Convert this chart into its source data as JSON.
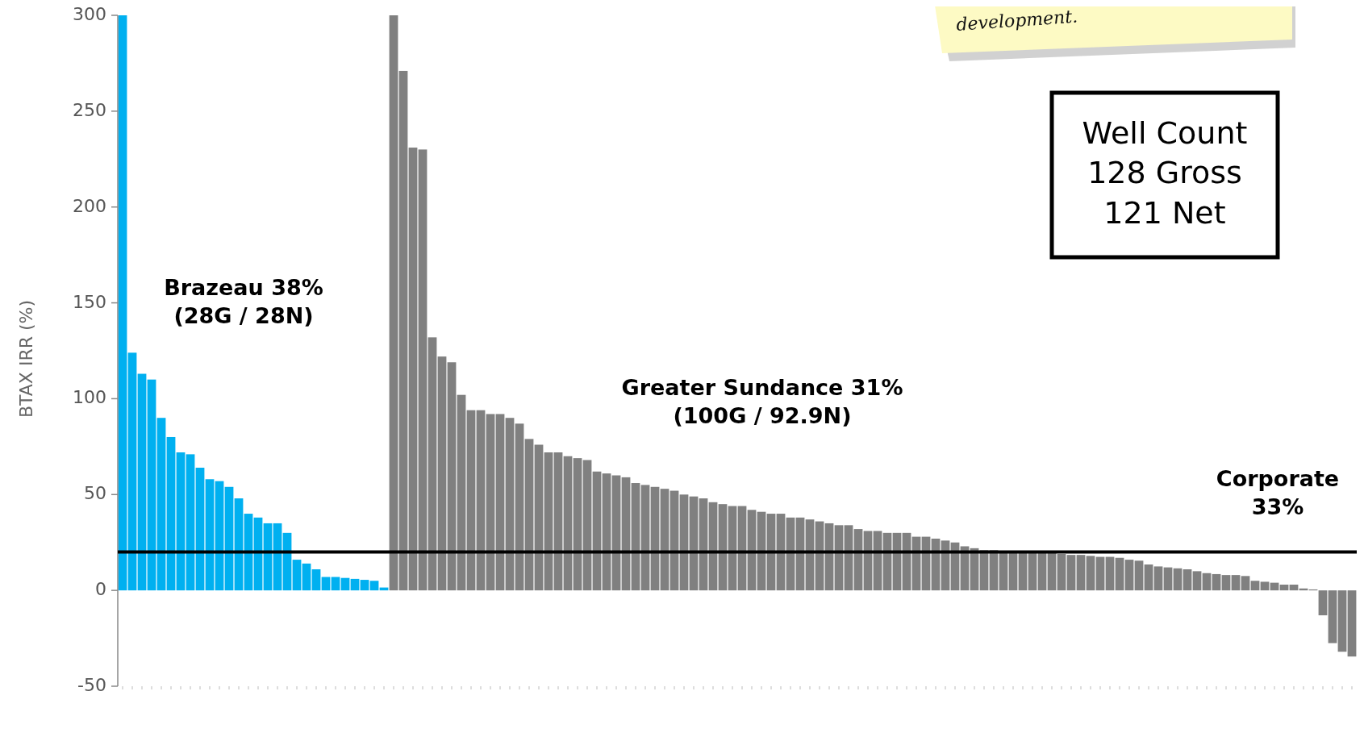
{
  "chart_data": {
    "type": "bar",
    "ylabel": "BTAX IRR (%)",
    "categories": [
      null,
      null,
      null,
      null,
      null,
      null,
      null,
      null,
      null,
      null,
      null,
      null,
      null,
      null,
      null,
      null,
      null,
      null,
      null,
      null,
      null,
      null,
      null,
      null,
      null,
      null,
      null,
      null,
      null,
      null,
      null,
      null,
      null,
      null,
      null,
      null,
      null,
      null,
      null,
      null,
      null,
      null,
      null,
      null,
      null,
      null,
      null,
      null,
      null,
      null,
      null,
      null,
      null,
      null,
      null,
      null,
      null,
      null,
      null,
      null,
      null,
      null,
      null,
      null,
      null,
      null,
      null,
      null,
      null,
      null,
      null,
      null,
      null,
      null,
      null,
      null,
      null,
      null,
      null,
      null,
      null,
      null,
      null,
      null,
      null,
      null,
      null,
      null,
      null,
      null,
      null,
      null,
      null,
      null,
      null,
      null,
      null,
      null,
      null,
      null,
      null,
      null,
      null,
      null,
      null,
      null,
      null,
      null,
      null,
      null,
      null,
      null,
      null,
      null,
      null,
      null,
      null,
      null,
      null,
      null,
      null,
      null,
      null,
      null,
      null,
      null,
      null,
      null
    ],
    "values": [
      300,
      124,
      113,
      110,
      90,
      80,
      72,
      71,
      64,
      58,
      57,
      54,
      48,
      40,
      38,
      35,
      35,
      30,
      16,
      14,
      11,
      7,
      7,
      6.5,
      6,
      5.5,
      5,
      1.5,
      300,
      271,
      231,
      230,
      132,
      122,
      119,
      102,
      94,
      94,
      92,
      92,
      90,
      87,
      79,
      76,
      72,
      72,
      70,
      69,
      68,
      62,
      61,
      60,
      59,
      56,
      55,
      54,
      53,
      52,
      50,
      49,
      48,
      46,
      45,
      44,
      44,
      42,
      41,
      40,
      40,
      38,
      38,
      37,
      36,
      35,
      34,
      34,
      32,
      31,
      31,
      30,
      30,
      30,
      28,
      28,
      27,
      26,
      25,
      23,
      22,
      21,
      21,
      20.5,
      20.5,
      20,
      19.5,
      19.5,
      19.5,
      19,
      18.5,
      18.5,
      18,
      17.5,
      17.5,
      17,
      16,
      15.5,
      13.5,
      12.5,
      12,
      11.5,
      11,
      10,
      9,
      8.5,
      8,
      8,
      7.5,
      5,
      4.5,
      4,
      3,
      3,
      1,
      0.5,
      -13,
      -27.5,
      -32,
      -34.5
    ],
    "colors": [
      "#00b0f0",
      "#00b0f0",
      "#00b0f0",
      "#00b0f0",
      "#00b0f0",
      "#00b0f0",
      "#00b0f0",
      "#00b0f0",
      "#00b0f0",
      "#00b0f0",
      "#00b0f0",
      "#00b0f0",
      "#00b0f0",
      "#00b0f0",
      "#00b0f0",
      "#00b0f0",
      "#00b0f0",
      "#00b0f0",
      "#00b0f0",
      "#00b0f0",
      "#00b0f0",
      "#00b0f0",
      "#00b0f0",
      "#00b0f0",
      "#00b0f0",
      "#00b0f0",
      "#00b0f0",
      "#00b0f0",
      "#808080",
      "#808080",
      "#808080",
      "#808080",
      "#808080",
      "#808080",
      "#808080",
      "#808080",
      "#808080",
      "#808080",
      "#808080",
      "#808080",
      "#808080",
      "#808080",
      "#808080",
      "#808080",
      "#808080",
      "#808080",
      "#808080",
      "#808080",
      "#808080",
      "#808080",
      "#808080",
      "#808080",
      "#808080",
      "#808080",
      "#808080",
      "#808080",
      "#808080",
      "#808080",
      "#808080",
      "#808080",
      "#808080",
      "#808080",
      "#808080",
      "#808080",
      "#808080",
      "#808080",
      "#808080",
      "#808080",
      "#808080",
      "#808080",
      "#808080",
      "#808080",
      "#808080",
      "#808080",
      "#808080",
      "#808080",
      "#808080",
      "#808080",
      "#808080",
      "#808080",
      "#808080",
      "#808080",
      "#808080",
      "#808080",
      "#808080",
      "#808080",
      "#808080",
      "#808080",
      "#808080",
      "#808080",
      "#808080",
      "#808080",
      "#808080",
      "#808080",
      "#808080",
      "#808080",
      "#808080",
      "#808080",
      "#808080",
      "#808080",
      "#808080",
      "#808080",
      "#808080",
      "#808080",
      "#808080",
      "#808080",
      "#808080",
      "#808080",
      "#808080",
      "#808080",
      "#808080",
      "#808080",
      "#808080",
      "#808080",
      "#808080",
      "#808080",
      "#808080",
      "#808080",
      "#808080",
      "#808080",
      "#808080",
      "#808080",
      "#808080",
      "#808080",
      "#808080",
      "#808080",
      "#808080",
      "#808080"
    ],
    "ylim": [
      -50,
      300
    ],
    "yticks": [
      -50,
      0,
      50,
      100,
      150,
      200,
      250,
      300
    ],
    "grid": false,
    "tick_labels": "y",
    "ref_lines": [
      {
        "axis": "y",
        "value": 20,
        "color": "#000000"
      }
    ],
    "annotations": [
      "Brazeau 38%\n(28G / 28N)",
      "Greater Sundance 31%\n(100G / 92.9N)",
      "Corporate\n33%",
      "Well Count\n128 Gross\n121 Net",
      "development."
    ]
  }
}
